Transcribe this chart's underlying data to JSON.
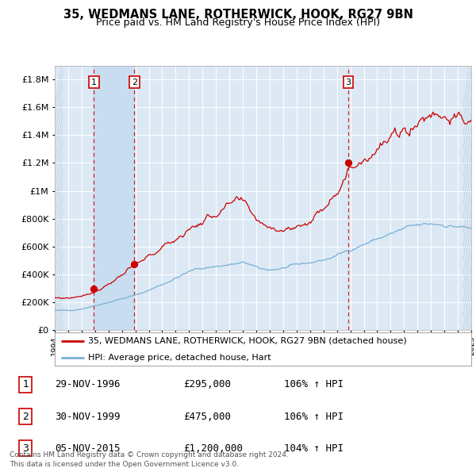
{
  "title1": "35, WEDMANS LANE, ROTHERWICK, HOOK, RG27 9BN",
  "title2": "Price paid vs. HM Land Registry's House Price Index (HPI)",
  "legend_line1": "35, WEDMANS LANE, ROTHERWICK, HOOK, RG27 9BN (detached house)",
  "legend_line2": "HPI: Average price, detached house, Hart",
  "transaction1": {
    "num": "1",
    "date": "29-NOV-1996",
    "price": "£295,000",
    "hpi": "106% ↑ HPI"
  },
  "transaction2": {
    "num": "2",
    "date": "30-NOV-1999",
    "price": "£475,000",
    "hpi": "106% ↑ HPI"
  },
  "transaction3": {
    "num": "3",
    "date": "05-NOV-2015",
    "price": "£1,200,000",
    "hpi": "104% ↑ HPI"
  },
  "footer1": "Contains HM Land Registry data © Crown copyright and database right 2024.",
  "footer2": "This data is licensed under the Open Government Licence v3.0.",
  "red_color": "#cc0000",
  "blue_color": "#7aafd4",
  "background_color": "#ffffff",
  "plot_bg_color": "#dce9f5",
  "grid_color": "#ffffff",
  "vline_color": "#cc0000",
  "highlight_bg": "#c8ddf0",
  "ylim_min": 0,
  "ylim_max": 1900000,
  "start_year": 1994,
  "end_year": 2025,
  "t1_year": 1996.92,
  "t2_year": 1999.92,
  "t3_year": 2015.85
}
